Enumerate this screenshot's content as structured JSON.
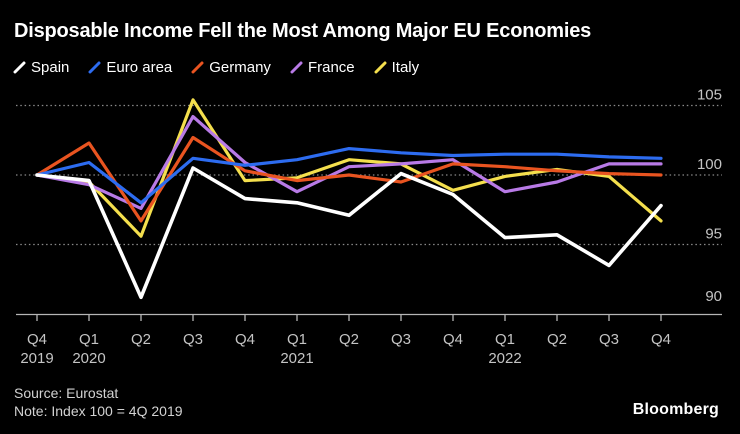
{
  "header": {
    "title": "Disposable Income Fell the Most Among Major EU Economies"
  },
  "chart_data": {
    "type": "line",
    "title": "Disposable Income Fell the Most Among Major EU Economies",
    "note": "Index 100 = 4Q 2019",
    "legend_position": "top",
    "grid": "horizontal-dotted",
    "ylim": [
      90,
      105.5
    ],
    "yticks": [
      105,
      100,
      95,
      90
    ],
    "x_ticks": [
      {
        "q": "Q4",
        "year": "2019"
      },
      {
        "q": "Q1",
        "year": "2020"
      },
      {
        "q": "Q2"
      },
      {
        "q": "Q3"
      },
      {
        "q": "Q4"
      },
      {
        "q": "Q1",
        "year": "2021"
      },
      {
        "q": "Q2"
      },
      {
        "q": "Q3"
      },
      {
        "q": "Q4"
      },
      {
        "q": "Q1",
        "year": "2022"
      },
      {
        "q": "Q2"
      },
      {
        "q": "Q3"
      },
      {
        "q": "Q4"
      }
    ],
    "series": [
      {
        "name": "Spain",
        "color": "#ffffff",
        "values": [
          100,
          99.6,
          91.2,
          100.5,
          98.3,
          98.0,
          97.1,
          100.1,
          98.6,
          95.5,
          95.7,
          93.5,
          97.8
        ]
      },
      {
        "name": "Euro area",
        "color": "#2d6cf0",
        "values": [
          100,
          100.9,
          98.0,
          101.2,
          100.7,
          101.1,
          101.9,
          101.6,
          101.4,
          101.5,
          101.5,
          101.3,
          101.2
        ]
      },
      {
        "name": "Germany",
        "color": "#e95420",
        "values": [
          100,
          102.3,
          96.7,
          102.7,
          100.3,
          99.6,
          100.0,
          99.5,
          100.8,
          100.6,
          100.3,
          100.1,
          100.0
        ]
      },
      {
        "name": "France",
        "color": "#b87ae6",
        "values": [
          100,
          99.3,
          97.6,
          104.2,
          100.9,
          98.8,
          100.6,
          100.8,
          101.1,
          98.8,
          99.5,
          100.8,
          100.8
        ]
      },
      {
        "name": "Italy",
        "color": "#f4df4d",
        "values": [
          100,
          99.5,
          95.6,
          105.4,
          99.6,
          99.8,
          101.1,
          100.8,
          98.9,
          99.9,
          100.4,
          99.9,
          96.7
        ]
      }
    ],
    "colors": {
      "background": "#000000",
      "axis_label": "#c4c4c4",
      "axis_line": "#b5b5b5",
      "gridline": "#8a8a8a",
      "footer_text": "#d2d2d2"
    }
  },
  "footer": {
    "source": "Source: Eurostat",
    "note": "Note: Index 100 = 4Q 2019",
    "brand": "Bloomberg"
  }
}
